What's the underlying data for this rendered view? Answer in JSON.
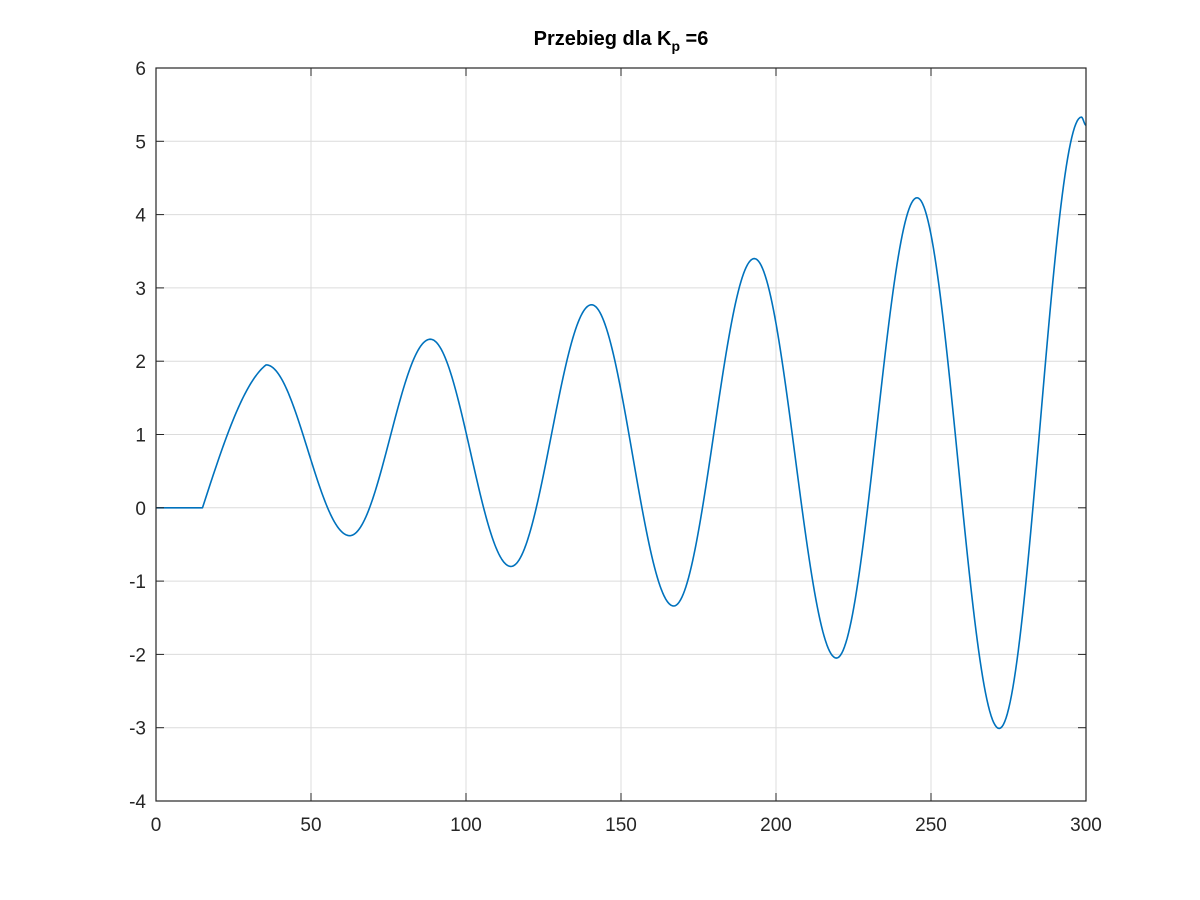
{
  "chart_data": {
    "type": "line",
    "title": {
      "prefix": "Przebieg dla K",
      "subscript": "p",
      "suffix": " =6"
    },
    "xlabel": "",
    "ylabel": "",
    "xlim": [
      0,
      300
    ],
    "ylim": [
      -4,
      6
    ],
    "xticks": [
      0,
      50,
      100,
      150,
      200,
      250,
      300
    ],
    "yticks": [
      -4,
      -3,
      -2,
      -1,
      0,
      1,
      2,
      3,
      4,
      5,
      6
    ],
    "grid": true,
    "colors": {
      "line": "#0072BD",
      "grid": "#dcdcdc",
      "axes": "#262626"
    },
    "series": [
      {
        "extrema": [
          [
            0,
            0
          ],
          [
            15,
            0
          ],
          [
            35.5,
            1.95
          ],
          [
            62.5,
            -0.38
          ],
          [
            88.5,
            2.3
          ],
          [
            114.5,
            -0.8
          ],
          [
            140.5,
            2.77
          ],
          [
            167,
            -1.34
          ],
          [
            193,
            3.4
          ],
          [
            219.5,
            -2.05
          ],
          [
            245.5,
            4.23
          ],
          [
            272,
            -3.01
          ],
          [
            298.5,
            5.33
          ],
          [
            300,
            5.22
          ]
        ]
      }
    ]
  }
}
